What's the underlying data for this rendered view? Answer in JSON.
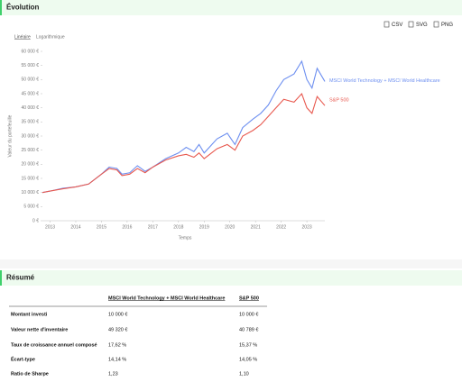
{
  "section_title": "Évolution",
  "buttons": [
    "CSV",
    "SVG",
    "PNG"
  ],
  "scale_options": [
    "Linéaire",
    "Logarithmique"
  ],
  "chart_data": {
    "type": "line",
    "y_label": "Valeur du portefeuille",
    "x_label": "Temps",
    "x": [
      2012.7,
      2013,
      2013.5,
      2014,
      2014.5,
      2015,
      2015.3,
      2015.6,
      2015.8,
      2016.1,
      2016.4,
      2016.7,
      2017,
      2017.5,
      2018,
      2018.3,
      2018.6,
      2018.8,
      2019,
      2019.5,
      2019.9,
      2020.2,
      2020.5,
      2020.9,
      2021.2,
      2021.5,
      2021.8,
      2022.1,
      2022.5,
      2022.8,
      2023,
      2023.2,
      2023.4,
      2023.7
    ],
    "series": [
      {
        "name": "MSCI World Technology + MSCI World Healthcare",
        "color": "#6d8ff0",
        "values": [
          10000,
          10500,
          11500,
          12000,
          13000,
          16500,
          19000,
          18500,
          16500,
          17000,
          19500,
          17500,
          19000,
          22000,
          24000,
          26000,
          24500,
          27000,
          24000,
          29000,
          31000,
          27000,
          33000,
          36000,
          38000,
          41000,
          46000,
          50000,
          52000,
          56500,
          50000,
          47000,
          54000,
          49320
        ]
      },
      {
        "name": "S&P 500",
        "color": "#e8594f",
        "values": [
          10000,
          10500,
          11300,
          12000,
          13000,
          16500,
          18500,
          18000,
          16000,
          16500,
          18500,
          17000,
          19000,
          21500,
          23000,
          23500,
          22500,
          24000,
          22000,
          25500,
          27000,
          25000,
          30000,
          32000,
          34000,
          37000,
          40000,
          43000,
          42000,
          45000,
          40000,
          38000,
          44000,
          40789
        ]
      }
    ],
    "xlim": [
      2012.7,
      2023.7
    ],
    "xticks": [
      2013,
      2014,
      2015,
      2016,
      2017,
      2018,
      2019,
      2020,
      2021,
      2022,
      2023
    ],
    "ylim": [
      0,
      60000
    ],
    "yticks": [
      {
        "value": 0,
        "label": "0 €"
      },
      {
        "value": 5000,
        "label": "5 000 €"
      },
      {
        "value": 10000,
        "label": "10 000 €"
      },
      {
        "value": 15000,
        "label": "15 000 €"
      },
      {
        "value": 20000,
        "label": "20 000 €"
      },
      {
        "value": 25000,
        "label": "25 000 €"
      },
      {
        "value": 30000,
        "label": "30 000 €"
      },
      {
        "value": 35000,
        "label": "35 000 €"
      },
      {
        "value": 40000,
        "label": "40 000 €"
      },
      {
        "value": 45000,
        "label": "45 000 €"
      },
      {
        "value": 50000,
        "label": "50 000 €"
      },
      {
        "value": 55000,
        "label": "55 000 €"
      },
      {
        "value": 60000,
        "label": "60 000 €"
      }
    ]
  },
  "summary": {
    "title": "Résumé",
    "columns": [
      "MSCI World Technology + MSCI World Healthcare",
      "S&P 500"
    ],
    "rows": [
      [
        "Montant investi",
        "10 000 €",
        "10 000 €"
      ],
      [
        "Valeur nette d'inventaire",
        "49 320 €",
        "40 789 €"
      ],
      [
        "Taux de croissance annuel composé",
        "17,62 %",
        "15,37 %"
      ],
      [
        "Écart-type",
        "14,14 %",
        "14,05 %"
      ],
      [
        "Ratio de Sharpe",
        "1,23",
        "1,10"
      ]
    ]
  }
}
